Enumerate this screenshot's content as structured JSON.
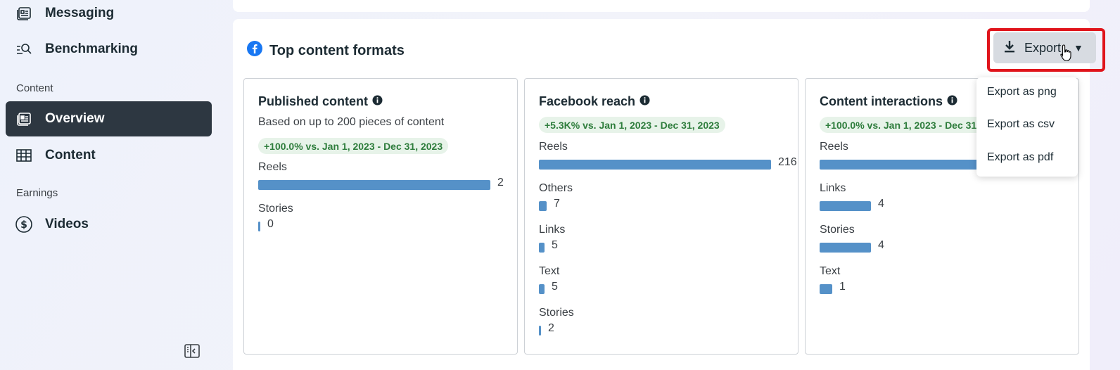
{
  "sidebar": {
    "items": [
      {
        "label": "Messaging"
      },
      {
        "label": "Benchmarking"
      },
      {
        "label": "Overview"
      },
      {
        "label": "Content"
      },
      {
        "label": "Videos"
      }
    ],
    "sections": {
      "content": "Content",
      "earnings": "Earnings"
    },
    "active_color": "#2d3741"
  },
  "card": {
    "title": "Top content formats",
    "export_label": "Export",
    "export_menu": [
      "Export as png",
      "Export as csv",
      "Export as pdf"
    ]
  },
  "panels": [
    {
      "title": "Published content",
      "subtitle": "Based on up to 200 pieces of content",
      "badge": "+100.0% vs. Jan 1, 2023 - Dec 31, 2023",
      "rows": [
        {
          "label": "Reels",
          "value": "2",
          "fraction": 1.0
        },
        {
          "label": "Stories",
          "value": "0",
          "fraction": 0.0
        }
      ]
    },
    {
      "title": "Facebook reach",
      "badge": "+5.3K% vs. Jan 1, 2023 - Dec 31, 2023",
      "rows": [
        {
          "label": "Reels",
          "value": "216",
          "fraction": 1.0
        },
        {
          "label": "Others",
          "value": "7",
          "fraction": 0.032
        },
        {
          "label": "Links",
          "value": "5",
          "fraction": 0.023
        },
        {
          "label": "Text",
          "value": "5",
          "fraction": 0.023
        },
        {
          "label": "Stories",
          "value": "2",
          "fraction": 0.009
        }
      ]
    },
    {
      "title": "Content interactions",
      "badge": "+100.0% vs. Jan 1, 2023 - Dec 31, 2023",
      "rows": [
        {
          "label": "Reels",
          "value": "",
          "fraction": 1.0
        },
        {
          "label": "Links",
          "value": "4",
          "fraction": 0.22
        },
        {
          "label": "Stories",
          "value": "4",
          "fraction": 0.22
        },
        {
          "label": "Text",
          "value": "1",
          "fraction": 0.055
        }
      ]
    }
  ],
  "colors": {
    "bar": "#5591c8",
    "badge_bg": "#e7f3e9",
    "badge_text": "#2e7d3c",
    "highlight": "#e0141b",
    "facebook": "#1877f2"
  }
}
